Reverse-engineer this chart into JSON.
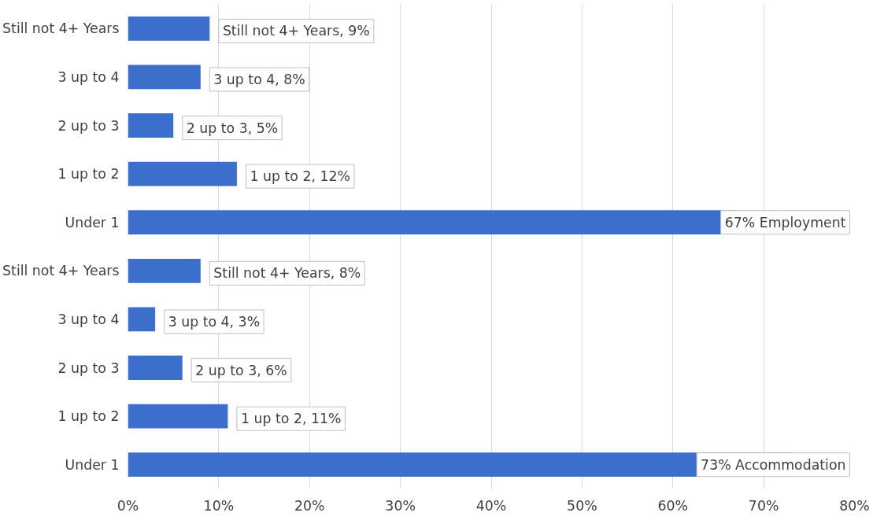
{
  "chart_data": {
    "type": "bar",
    "orientation": "horizontal",
    "categories": [
      "Still not 4+ Years",
      "3 up to 4",
      "2 up to 3",
      "1 up to 2",
      "Under 1",
      "Still not 4+ Years",
      "3 up to 4",
      "2 up to 3",
      "1 up to 2",
      "Under 1"
    ],
    "values": [
      9,
      8,
      5,
      12,
      67,
      8,
      3,
      6,
      11,
      73
    ],
    "value_labels": [
      "Still not 4+ Years, 9%",
      "3 up to 4, 8%",
      "2 up to 3, 5%",
      "1 up to 2, 12%",
      "67% Employment",
      "Still not 4+ Years, 8%",
      "3 up to 4, 3%",
      "2 up to 3, 6%",
      "1 up to 2, 11%",
      "73% Accommodation"
    ],
    "color": "#3b6fcb",
    "xlim": [
      0,
      80
    ],
    "xticks": [
      {
        "value": 0,
        "label": "0%"
      },
      {
        "value": 10,
        "label": "10%"
      },
      {
        "value": 20,
        "label": "20%"
      },
      {
        "value": 30,
        "label": "30%"
      },
      {
        "value": 40,
        "label": "40%"
      },
      {
        "value": 50,
        "label": "50%"
      },
      {
        "value": 60,
        "label": "60%"
      },
      {
        "value": 70,
        "label": "70%"
      },
      {
        "value": 80,
        "label": "80%"
      }
    ],
    "grid": "x"
  }
}
